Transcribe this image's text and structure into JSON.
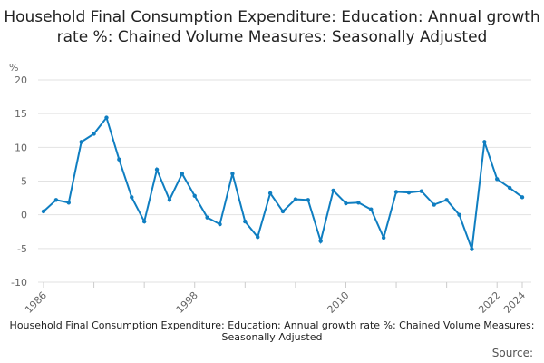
{
  "chart_data": {
    "type": "line",
    "title": "Household Final Consumption Expenditure: Education: Annual growth rate %: Chained Volume Measures: Seasonally Adjusted",
    "ylabel": "%",
    "ylim": [
      -10,
      20
    ],
    "yticks": [
      20,
      15,
      10,
      5,
      0,
      -5,
      -10
    ],
    "xticks": [
      1986,
      1998,
      2010,
      2022,
      2024
    ],
    "grid": true,
    "color": "#0f7ec1",
    "legend": "Household Final Consumption Expenditure: Education: Annual growth rate %: Chained Volume Measures: Seasonally Adjusted",
    "x": [
      1986,
      1987,
      1988,
      1989,
      1990,
      1991,
      1992,
      1993,
      1994,
      1995,
      1996,
      1997,
      1998,
      1999,
      2000,
      2001,
      2002,
      2003,
      2004,
      2005,
      2006,
      2007,
      2008,
      2009,
      2010,
      2011,
      2012,
      2013,
      2014,
      2015,
      2016,
      2017,
      2018,
      2019,
      2020,
      2021,
      2022,
      2023,
      2024
    ],
    "y": [
      0.5,
      2.2,
      1.8,
      10.8,
      12.0,
      14.4,
      8.2,
      2.6,
      -1.0,
      6.7,
      2.2,
      6.1,
      2.8,
      -0.4,
      -1.4,
      6.1,
      -1.0,
      -3.3,
      3.2,
      0.5,
      2.3,
      2.2,
      -3.9,
      3.6,
      1.7,
      1.8,
      0.8,
      -3.4,
      3.4,
      3.3,
      3.5,
      1.5,
      2.2,
      0.0,
      -5.1,
      10.8,
      5.3,
      4.0,
      2.6
    ]
  },
  "source_label": "Source:"
}
